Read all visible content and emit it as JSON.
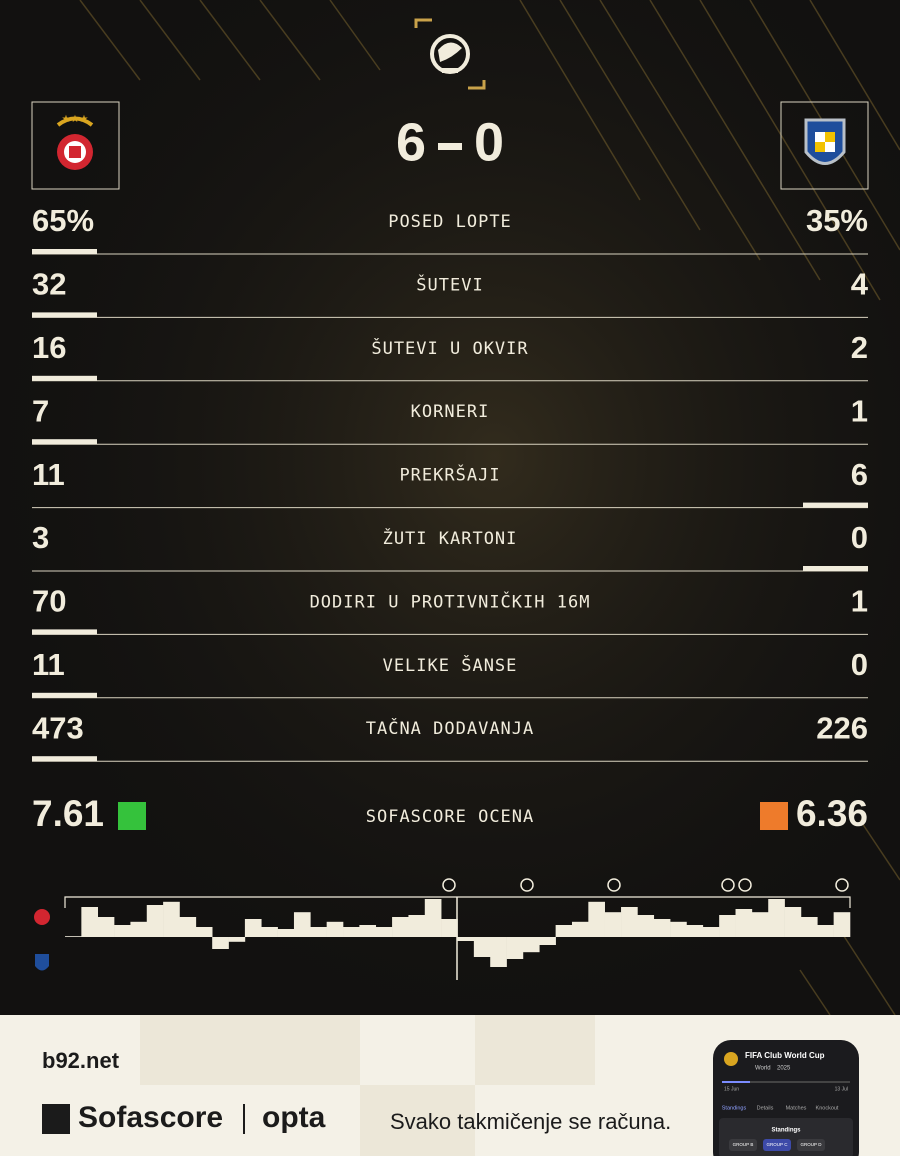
{
  "header": {
    "home_score": 6,
    "away_score": 0
  },
  "stats": [
    {
      "label": "POSED LOPTE",
      "home": "65%",
      "away": "35%",
      "highlight": "home"
    },
    {
      "label": "ŠUTEVI",
      "home": "32",
      "away": "4",
      "highlight": "home"
    },
    {
      "label": "ŠUTEVI U OKVIR",
      "home": "16",
      "away": "2",
      "highlight": "home"
    },
    {
      "label": "KORNERI",
      "home": "7",
      "away": "1",
      "highlight": "home"
    },
    {
      "label": "PREKRŠAJI",
      "home": "11",
      "away": "6",
      "highlight": "away"
    },
    {
      "label": "ŽUTI KARTONI",
      "home": "3",
      "away": "0",
      "highlight": "away"
    },
    {
      "label": "DODIRI U PROTIVNIČKIH 16M",
      "home": "70",
      "away": "1",
      "highlight": "home"
    },
    {
      "label": "VELIKE ŠANSE",
      "home": "11",
      "away": "0",
      "highlight": "home"
    },
    {
      "label": "TAČNA DODAVANJA",
      "home": "473",
      "away": "226",
      "highlight": "home"
    }
  ],
  "rating": {
    "label": "SOFASCORE OCENA",
    "home": "7.61",
    "home_color": "#35c23c",
    "away": "6.36",
    "away_color": "#ee7b2b"
  },
  "chart_data": {
    "type": "momentum",
    "color": "#f1ecdc",
    "ylim": [
      -100,
      100
    ],
    "values": [
      2,
      75,
      50,
      30,
      38,
      80,
      88,
      50,
      25,
      -30,
      -12,
      45,
      25,
      20,
      62,
      25,
      38,
      25,
      30,
      25,
      50,
      55,
      95,
      45,
      -10,
      -50,
      -75,
      -55,
      -38,
      -20,
      30,
      38,
      88,
      62,
      75,
      55,
      45,
      38,
      30,
      25,
      55,
      70,
      62,
      95,
      75,
      50,
      30,
      62
    ]
  },
  "footer": {
    "site": "b92.net",
    "brand": "Sofascore",
    "partner": "opta",
    "slogan": "Svako takmičenje se računa.",
    "phone": {
      "title": "FIFA Club World Cup",
      "region": "World",
      "season": "2025",
      "start": "15 Jun",
      "end": "13 Jul",
      "tabs": [
        "Standings",
        "Details",
        "Matches",
        "Knockout"
      ],
      "section": "Standings",
      "groups": [
        "GROUP B",
        "GROUP C",
        "GROUP D"
      ]
    }
  }
}
